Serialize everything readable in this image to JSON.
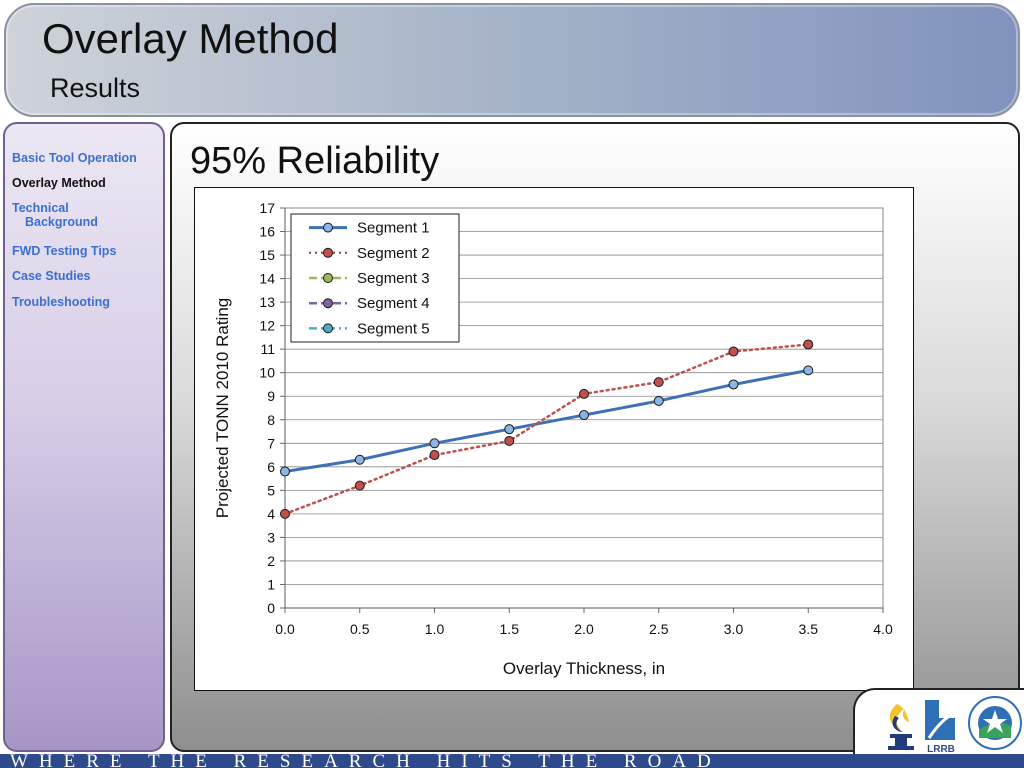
{
  "header": {
    "title": "Overlay Method",
    "subtitle": "Results"
  },
  "sidebar": {
    "items": [
      {
        "label": "Basic Tool Operation",
        "active": false
      },
      {
        "label": "Overlay Method",
        "active": true
      },
      {
        "label": "Technical",
        "label2": "Background",
        "active": false
      },
      {
        "label": "FWD Testing Tips",
        "active": false
      },
      {
        "label": "Case Studies",
        "active": false
      },
      {
        "label": "Troubleshooting",
        "active": false
      }
    ]
  },
  "slide": {
    "heading": "95% Reliability"
  },
  "chart_data": {
    "type": "line",
    "title": "",
    "xlabel": "Overlay Thickness, in",
    "ylabel": "Projected TONN 2010 Rating",
    "xlim": [
      0,
      4
    ],
    "ylim": [
      0,
      17
    ],
    "xticks": [
      "0.0",
      "0.5",
      "1.0",
      "1.5",
      "2.0",
      "2.5",
      "3.0",
      "3.5",
      "4.0"
    ],
    "yticks": [
      "0",
      "1",
      "2",
      "3",
      "4",
      "5",
      "6",
      "7",
      "8",
      "9",
      "10",
      "11",
      "12",
      "13",
      "14",
      "15",
      "16",
      "17"
    ],
    "grid": "horizontal",
    "legend": "top-left",
    "series": [
      {
        "name": "Segment 1",
        "color": "#3f6fb4",
        "line": "solid",
        "marker": "#8db4e2",
        "x": [
          0,
          0.5,
          1.0,
          1.5,
          2.0,
          2.5,
          3.0,
          3.5
        ],
        "y": [
          5.8,
          6.3,
          7.0,
          7.6,
          8.2,
          8.8,
          9.5,
          10.1
        ]
      },
      {
        "name": "Segment 2",
        "color": "#c0504d",
        "line": "dotted",
        "marker": "#c0504d",
        "x": [
          0,
          0.5,
          1.0,
          1.5,
          2.0,
          2.5,
          3.0,
          3.5
        ],
        "y": [
          4.0,
          5.2,
          6.5,
          7.1,
          9.1,
          9.6,
          10.9,
          11.2
        ]
      },
      {
        "name": "Segment 3",
        "color": "#9bbb59",
        "line": "dashed",
        "marker": "#9bbb59",
        "x": [],
        "y": []
      },
      {
        "name": "Segment 4",
        "color": "#8064a2",
        "line": "dashed",
        "marker": "#8064a2",
        "x": [],
        "y": []
      },
      {
        "name": "Segment 5",
        "color": "#4bacc6",
        "line": "dashdot",
        "marker": "#4bacc6",
        "x": [],
        "y": []
      }
    ]
  },
  "footer": {
    "text": "WHERE THE RESEARCH HITS THE ROAD"
  },
  "logos": [
    {
      "icon": "torch-logo-icon"
    },
    {
      "icon": "lrrb-logo-icon",
      "text": "LRRB"
    },
    {
      "icon": "mndot-seal-icon"
    }
  ]
}
